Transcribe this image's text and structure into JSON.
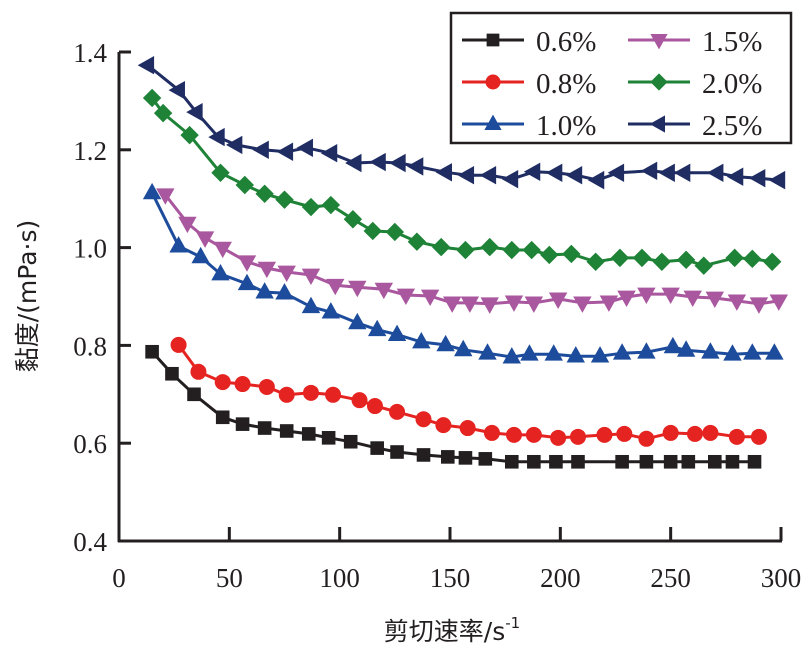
{
  "chart_data": {
    "type": "line",
    "title": "",
    "xlabel": "剪切速率/s",
    "xlabel_superscript": "-1",
    "ylabel": "黏度/(mPa·s)",
    "xlim": [
      0,
      300
    ],
    "ylim": [
      0.4,
      1.4
    ],
    "xticks": [
      0,
      50,
      100,
      150,
      200,
      250,
      300
    ],
    "xtick_labels": [
      "0",
      "50",
      "100",
      "150",
      "200",
      "250",
      "300"
    ],
    "yticks": [
      0.4,
      0.6,
      0.8,
      1.0,
      1.2,
      1.4
    ],
    "ytick_labels": [
      "0.4",
      "0.6",
      "0.8",
      "1.0",
      "1.2",
      "1.4"
    ],
    "grid": false,
    "legend_position": "top-right",
    "series": [
      {
        "name": "0.6%",
        "color": "#231f20",
        "marker": "square",
        "x": [
          15,
          24,
          34,
          47,
          56,
          66,
          76,
          86,
          95,
          105,
          117,
          126,
          138,
          149,
          157,
          166,
          178,
          188,
          198,
          208,
          228,
          239,
          250,
          258,
          270,
          278,
          288
        ],
        "y": [
          0.787,
          0.742,
          0.7,
          0.653,
          0.639,
          0.631,
          0.625,
          0.619,
          0.611,
          0.603,
          0.59,
          0.582,
          0.576,
          0.572,
          0.57,
          0.568,
          0.562,
          0.562,
          0.562,
          0.562,
          0.562,
          0.562,
          0.562,
          0.562,
          0.562,
          0.562,
          0.562
        ]
      },
      {
        "name": "0.8%",
        "color": "#e52421",
        "marker": "circle",
        "x": [
          27,
          36,
          47,
          56,
          67,
          76,
          87,
          97,
          109,
          116,
          126,
          138,
          147,
          158,
          169,
          179,
          188,
          199,
          208,
          220,
          229,
          239,
          250,
          261,
          268,
          280,
          290
        ],
        "y": [
          0.801,
          0.746,
          0.725,
          0.721,
          0.715,
          0.699,
          0.703,
          0.699,
          0.688,
          0.676,
          0.664,
          0.649,
          0.637,
          0.631,
          0.621,
          0.617,
          0.617,
          0.611,
          0.613,
          0.617,
          0.619,
          0.609,
          0.621,
          0.619,
          0.621,
          0.613,
          0.613
        ]
      },
      {
        "name": "1.0%",
        "color": "#1d4c9c",
        "marker": "triangle-up",
        "x": [
          15,
          27,
          37,
          46,
          58,
          66,
          75,
          87,
          96,
          108,
          117,
          126,
          137,
          148,
          156,
          167,
          178,
          186,
          197,
          207,
          218,
          228,
          239,
          251,
          257,
          268,
          278,
          287,
          297
        ],
        "y": [
          1.112,
          1.003,
          0.981,
          0.946,
          0.926,
          0.909,
          0.907,
          0.879,
          0.868,
          0.846,
          0.832,
          0.822,
          0.807,
          0.801,
          0.791,
          0.784,
          0.776,
          0.782,
          0.782,
          0.778,
          0.778,
          0.784,
          0.786,
          0.797,
          0.79,
          0.786,
          0.782,
          0.784,
          0.784
        ]
      },
      {
        "name": "1.5%",
        "color": "#a9579e",
        "marker": "triangle-down",
        "x": [
          21,
          31,
          39,
          47,
          58,
          67,
          76,
          87,
          98,
          108,
          120,
          130,
          141,
          151,
          159,
          168,
          179,
          188,
          199,
          210,
          222,
          230,
          239,
          250,
          260,
          270,
          280,
          290,
          299
        ],
        "y": [
          1.108,
          1.05,
          1.02,
          0.999,
          0.971,
          0.958,
          0.95,
          0.944,
          0.923,
          0.919,
          0.915,
          0.903,
          0.901,
          0.887,
          0.887,
          0.885,
          0.889,
          0.887,
          0.895,
          0.887,
          0.889,
          0.899,
          0.905,
          0.905,
          0.899,
          0.897,
          0.891,
          0.885,
          0.891
        ]
      },
      {
        "name": "2.0%",
        "color": "#1e8237",
        "marker": "diamond",
        "x": [
          15,
          20,
          32,
          46,
          57,
          66,
          75,
          87,
          96,
          106,
          115,
          125,
          135,
          146,
          157,
          168,
          178,
          187,
          195,
          205,
          216,
          227,
          237,
          246,
          257,
          265,
          279,
          287,
          296
        ],
        "y": [
          1.306,
          1.275,
          1.23,
          1.153,
          1.128,
          1.11,
          1.098,
          1.083,
          1.087,
          1.058,
          1.034,
          1.032,
          1.012,
          1.001,
          0.995,
          1.001,
          0.995,
          0.995,
          0.985,
          0.987,
          0.971,
          0.979,
          0.979,
          0.971,
          0.975,
          0.963,
          0.979,
          0.977,
          0.971
        ]
      },
      {
        "name": "2.5%",
        "color": "#1f2d63",
        "marker": "triangle-left",
        "x": [
          13,
          27,
          35,
          45,
          53,
          65,
          76,
          85,
          96,
          107,
          118,
          127,
          135,
          148,
          158,
          168,
          178,
          188,
          198,
          207,
          217,
          226,
          241,
          249,
          256,
          271,
          280,
          290,
          299
        ],
        "y": [
          1.373,
          1.322,
          1.277,
          1.226,
          1.21,
          1.2,
          1.196,
          1.204,
          1.193,
          1.173,
          1.175,
          1.173,
          1.166,
          1.154,
          1.148,
          1.148,
          1.14,
          1.155,
          1.153,
          1.148,
          1.138,
          1.153,
          1.157,
          1.153,
          1.153,
          1.153,
          1.145,
          1.142,
          1.138
        ]
      }
    ]
  }
}
